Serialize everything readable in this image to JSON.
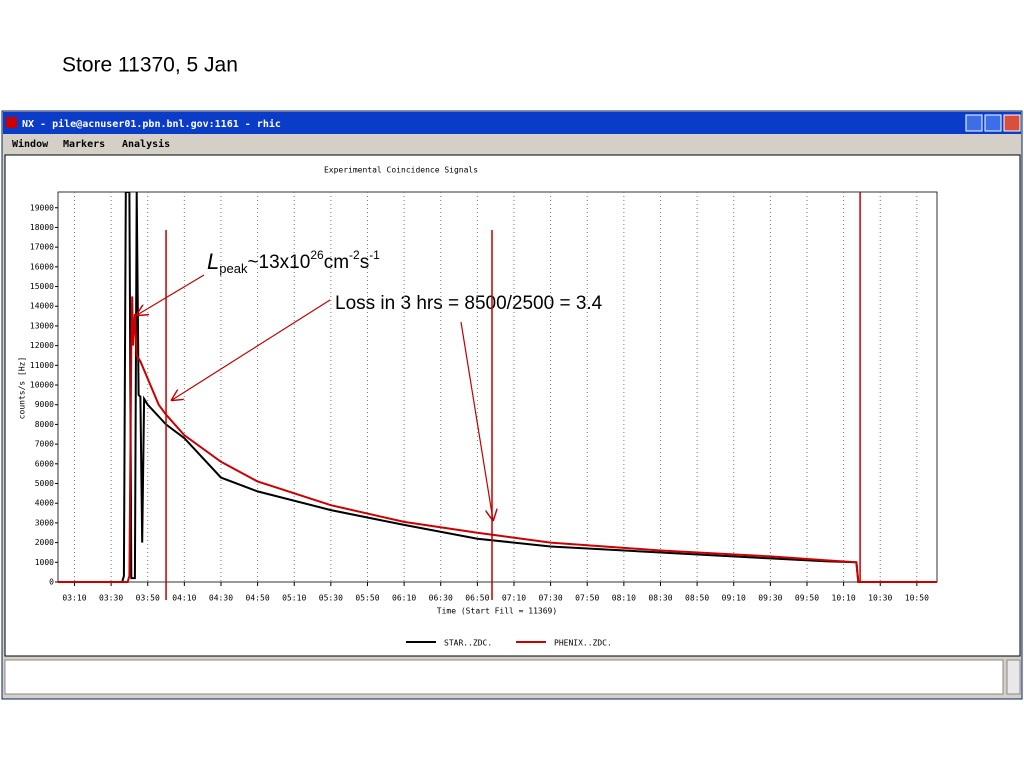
{
  "slide_title": "Store 11370, 5 Jan",
  "window": {
    "title": "NX - pile@acnuser01.pbn.bnl.gov:1161 - rhic",
    "menu": [
      "Window",
      "Markers",
      "Analysis"
    ]
  },
  "annotations": {
    "luminosity": [
      "L",
      "peak",
      "~13x10",
      "26",
      "cm",
      "-2",
      "s",
      "-1"
    ],
    "loss": "Loss in 3 hrs = 8500/2500 = 3.4"
  },
  "chart_data": {
    "type": "line",
    "title": "Experimental Coincidence Signals",
    "x_label": "Time (Start Fill = 11369)",
    "y_label": "counts/s [Hz]",
    "xlim": [
      181,
      661
    ],
    "ylim": [
      0,
      19800
    ],
    "xticks": [
      {
        "value": 190,
        "label": "03:10"
      },
      {
        "value": 210,
        "label": "03:30"
      },
      {
        "value": 230,
        "label": "03:50"
      },
      {
        "value": 250,
        "label": "04:10"
      },
      {
        "value": 270,
        "label": "04:30"
      },
      {
        "value": 290,
        "label": "04:50"
      },
      {
        "value": 310,
        "label": "05:10"
      },
      {
        "value": 330,
        "label": "05:30"
      },
      {
        "value": 350,
        "label": "05:50"
      },
      {
        "value": 370,
        "label": "06:10"
      },
      {
        "value": 390,
        "label": "06:30"
      },
      {
        "value": 410,
        "label": "06:50"
      },
      {
        "value": 430,
        "label": "07:10"
      },
      {
        "value": 450,
        "label": "07:30"
      },
      {
        "value": 470,
        "label": "07:50"
      },
      {
        "value": 490,
        "label": "08:10"
      },
      {
        "value": 510,
        "label": "08:30"
      },
      {
        "value": 530,
        "label": "08:50"
      },
      {
        "value": 550,
        "label": "09:10"
      },
      {
        "value": 570,
        "label": "09:30"
      },
      {
        "value": 590,
        "label": "09:50"
      },
      {
        "value": 610,
        "label": "10:10"
      },
      {
        "value": 630,
        "label": "10:30"
      },
      {
        "value": 650,
        "label": "10:50"
      }
    ],
    "yticks": [
      0,
      1000,
      2000,
      3000,
      4000,
      5000,
      6000,
      7000,
      8000,
      9000,
      10000,
      11000,
      12000,
      13000,
      14000,
      15000,
      16000,
      17000,
      18000,
      19000
    ],
    "grid": "x",
    "markers": [
      240,
      418,
      619
    ],
    "marker_color": "#c00000",
    "series": [
      {
        "name": "STAR..ZDC.",
        "color": "#000000",
        "x": [
          181,
          216,
          217,
          218,
          220,
          221,
          223,
          224,
          225,
          226,
          227,
          228,
          230,
          240,
          250,
          270,
          290,
          330,
          370,
          410,
          450,
          510,
          570,
          600,
          617,
          618,
          661
        ],
        "values": [
          0,
          0,
          300,
          19800,
          19800,
          200,
          200,
          19800,
          9500,
          9400,
          2000,
          9300,
          9000,
          8000,
          7300,
          5300,
          4600,
          3650,
          2900,
          2200,
          1800,
          1500,
          1200,
          1050,
          1000,
          0,
          0
        ]
      },
      {
        "name": "PHENIX..ZDC.",
        "color": "#cc0000",
        "x": [
          181,
          219,
          220,
          221,
          221.5,
          222,
          223,
          224,
          226,
          236,
          240,
          250,
          270,
          290,
          330,
          370,
          410,
          450,
          510,
          570,
          600,
          617,
          618,
          661
        ],
        "values": [
          0,
          0,
          300,
          12000,
          14500,
          12000,
          13600,
          11500,
          11200,
          9000,
          8500,
          7450,
          6100,
          5100,
          3900,
          3050,
          2500,
          2000,
          1600,
          1300,
          1100,
          1000,
          0,
          0
        ]
      }
    ]
  }
}
